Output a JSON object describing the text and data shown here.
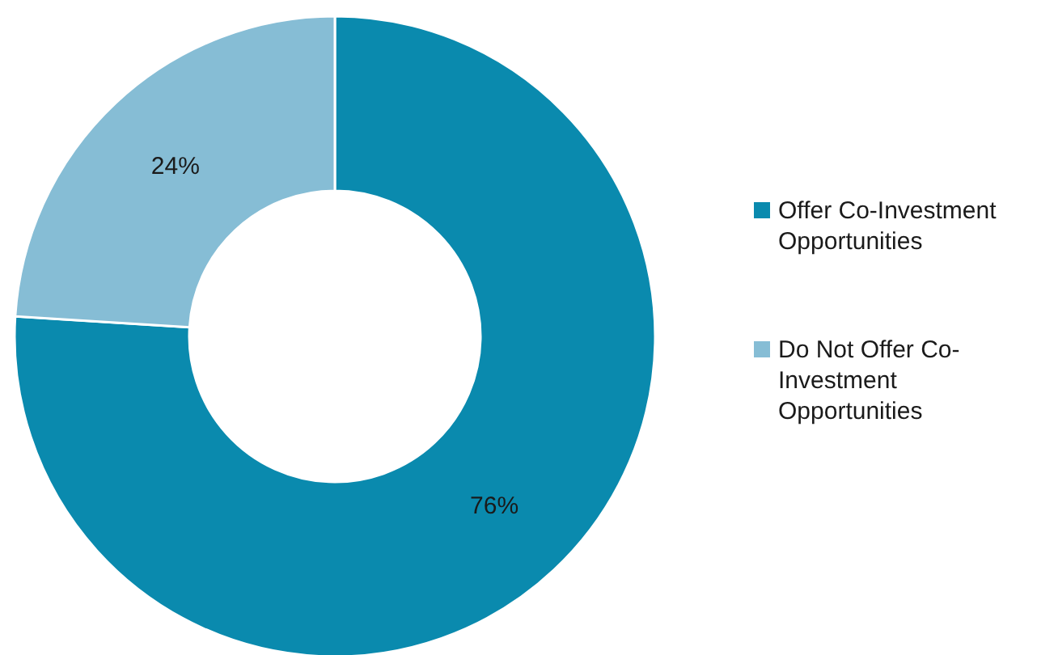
{
  "chart_data": {
    "type": "donut",
    "categories": [
      "Offer Co-Investment Opportunities",
      "Do Not Offer Co-Investment Opportunities"
    ],
    "values": [
      76,
      24
    ],
    "colors": [
      "#0a8aae",
      "#86bdd5"
    ],
    "value_labels": [
      "76%",
      "24%"
    ],
    "legend": "right"
  }
}
